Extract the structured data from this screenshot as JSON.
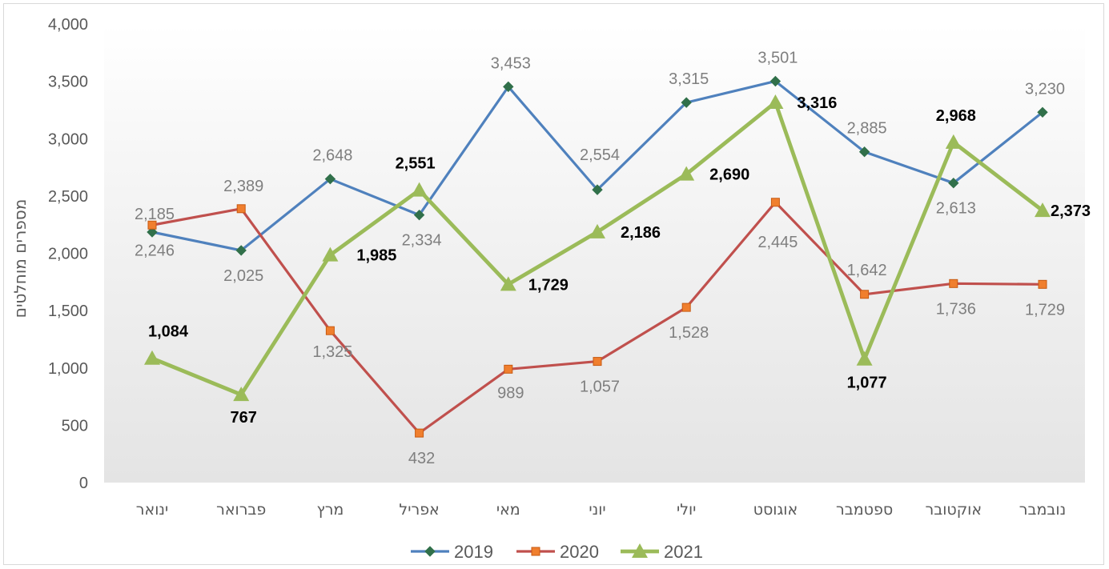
{
  "chart_data": {
    "type": "line",
    "title": "",
    "ylabel": "מספרים מוחלטים",
    "xlabel": "",
    "ylim": [
      0,
      4000
    ],
    "yticks": [
      0,
      500,
      1000,
      1500,
      2000,
      2500,
      3000,
      3500,
      4000
    ],
    "ytick_labels": [
      "0",
      "500",
      "1,000",
      "1,500",
      "2,000",
      "2,500",
      "3,000",
      "3,500",
      "4,000"
    ],
    "categories": [
      "ינואר",
      "פברואר",
      "מרץ",
      "אפריל",
      "מאי",
      "יוני",
      "יולי",
      "אוגוסט",
      "ספטמבר",
      "אוקטובר",
      "נובמבר"
    ],
    "grid": false,
    "legend": "bottom",
    "series": [
      {
        "name": "2019",
        "color": "#4f81bd",
        "marker": "diamond",
        "values": [
          2185,
          2025,
          2648,
          2334,
          3453,
          2554,
          3315,
          3501,
          2885,
          2613,
          3230
        ],
        "labels": [
          "2,185",
          "2,025",
          "2,648",
          "2,334",
          "3,453",
          "2,554",
          "3,315",
          "3,501",
          "2,885",
          "2,613",
          "3,230"
        ]
      },
      {
        "name": "2020",
        "color": "#c0504d",
        "marker": "square",
        "values": [
          2246,
          2389,
          1325,
          432,
          989,
          1057,
          1528,
          2445,
          1642,
          1736,
          1729
        ],
        "labels": [
          "2,246",
          "2,389",
          "1,325",
          "432",
          "989",
          "1,057",
          "1,528",
          "2,445",
          "1,642",
          "1,736",
          "1,729"
        ]
      },
      {
        "name": "2021",
        "color": "#9bbb59",
        "marker": "triangle",
        "values": [
          1084,
          767,
          1985,
          2551,
          1729,
          2186,
          2690,
          3316,
          1077,
          2968,
          2373
        ],
        "labels": [
          "1,084",
          "767",
          "1,985",
          "2,551",
          "1,729",
          "2,186",
          "2,690",
          "3,316",
          "1,077",
          "2,968",
          "2,373"
        ]
      }
    ]
  }
}
